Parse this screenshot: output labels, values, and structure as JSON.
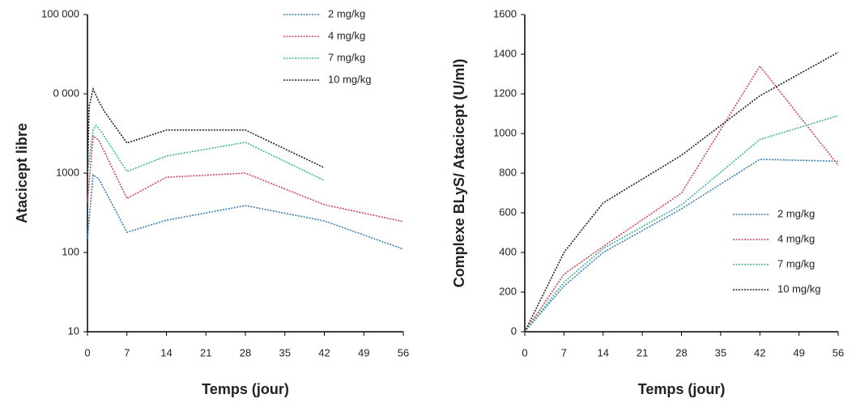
{
  "chart_data": [
    {
      "type": "line",
      "xlabel": "Temps (jour)",
      "ylabel": "Atacicept libre",
      "yscale": "log",
      "xlim": [
        0,
        56
      ],
      "xticks": [
        0,
        7,
        14,
        21,
        28,
        35,
        42,
        49,
        56
      ],
      "ylim": [
        10,
        100000
      ],
      "yticks": [
        10,
        100,
        1000,
        {
          "value": 10000,
          "label": "0 000"
        },
        {
          "value": 100000,
          "label": "100 000"
        }
      ],
      "legend": "upper right",
      "series": [
        {
          "name": "2 mg/kg",
          "color": "#3a7fb5",
          "x": [
            0,
            1,
            2,
            7,
            14,
            28,
            42,
            56
          ],
          "values": [
            150,
            950,
            850,
            180,
            255,
            390,
            250,
            110
          ]
        },
        {
          "name": "4 mg/kg",
          "color": "#d0475a",
          "x": [
            0,
            1,
            2,
            7,
            14,
            28,
            42,
            56
          ],
          "values": [
            430,
            2950,
            2600,
            480,
            890,
            1000,
            400,
            245
          ]
        },
        {
          "name": "7 mg/kg",
          "color": "#3fb59a",
          "x": [
            0,
            1,
            1.5,
            2.5,
            7,
            14,
            28,
            42
          ],
          "values": [
            1000,
            3500,
            4000,
            3300,
            1050,
            1640,
            2450,
            810
          ]
        },
        {
          "name": "10 mg/kg",
          "color": "#222222",
          "x": [
            0,
            0.3,
            1,
            2,
            3,
            7,
            14,
            28,
            42
          ],
          "values": [
            900,
            7000,
            11500,
            8100,
            6000,
            2400,
            3500,
            3500,
            1170
          ]
        }
      ]
    },
    {
      "type": "line",
      "xlabel": "Temps (jour)",
      "ylabel": "Complexe BLyS/ Atacicept (U/ml)",
      "xlim": [
        0,
        56
      ],
      "xticks": [
        0,
        7,
        14,
        21,
        28,
        35,
        42,
        49,
        56
      ],
      "ylim": [
        0,
        1600
      ],
      "yticks": [
        0,
        200,
        400,
        600,
        800,
        1000,
        1200,
        1400,
        1600
      ],
      "legend": "lower right",
      "series": [
        {
          "name": "2 mg/kg",
          "color": "#3a7fb5",
          "x": [
            0,
            7,
            14,
            28,
            42,
            56
          ],
          "values": [
            0,
            230,
            400,
            620,
            870,
            860
          ]
        },
        {
          "name": "4 mg/kg",
          "color": "#d0475a",
          "x": [
            0,
            7,
            14,
            28,
            42,
            56
          ],
          "values": [
            0,
            290,
            430,
            700,
            1340,
            840
          ]
        },
        {
          "name": "7 mg/kg",
          "color": "#3fb59a",
          "x": [
            0,
            7,
            14,
            28,
            42,
            56
          ],
          "values": [
            0,
            250,
            420,
            640,
            970,
            1090
          ]
        },
        {
          "name": "10 mg/kg",
          "color": "#222222",
          "x": [
            0,
            7,
            14,
            28,
            42,
            56
          ],
          "values": [
            0,
            400,
            650,
            890,
            1190,
            1410
          ]
        }
      ]
    }
  ]
}
